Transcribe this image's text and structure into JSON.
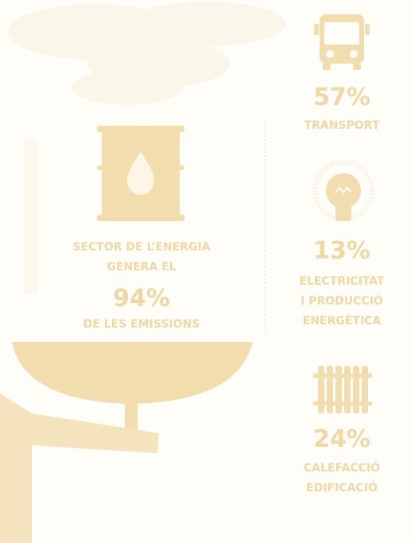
{
  "main": {
    "lines": [
      "SECTOR DE L’ENERGIA",
      "GENERA EL"
    ],
    "percent": "94%",
    "footer": "DE LES EMISSIONS"
  },
  "sectors": [
    {
      "percent": "57%",
      "lines": [
        "TRANSPORT"
      ]
    },
    {
      "percent": "13%",
      "lines": [
        "ELECTRICITAT",
        "I PRODUCCIÓ",
        "ENERGÈTICA"
      ]
    },
    {
      "percent": "24%",
      "lines": [
        "CALEFACCIÓ",
        "EDIFICACIÓ"
      ]
    }
  ]
}
